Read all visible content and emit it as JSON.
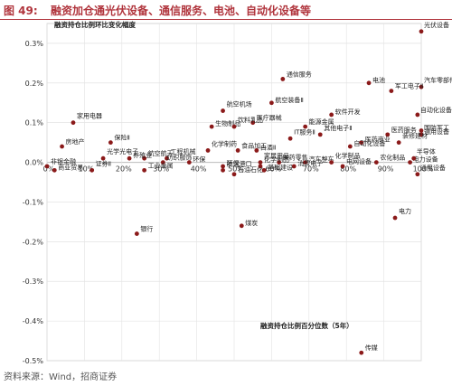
{
  "figure": {
    "label": "图 49:",
    "title": "融资加仓通光伏设备、通信服务、电池、自动化设备等",
    "source": "资料来源：Wind，招商证券"
  },
  "chart_data": {
    "type": "scatter",
    "title": "融资持仓比例环比变化幅度",
    "xlabel": "融资持仓比例百分位数（5年）",
    "ylabel": "",
    "xlim": [
      0,
      1
    ],
    "ylim": [
      -0.005,
      0.0035
    ],
    "x_ticks": [
      "0%",
      "10%",
      "20%",
      "30%",
      "40%",
      "50%",
      "60%",
      "70%",
      "80%",
      "90%",
      "100%"
    ],
    "y_ticks": [
      "0.3%",
      "0.2%",
      "0.1%",
      "0.0%",
      "-0.1%",
      "-0.2%",
      "-0.3%",
      "-0.4%",
      "-0.5%"
    ],
    "grid": true,
    "color": "#8b1a1a",
    "points": [
      {
        "name": "光伏设备",
        "x": 1.0,
        "y": 0.0033
      },
      {
        "name": "通信服务",
        "x": 0.63,
        "y": 0.0021
      },
      {
        "name": "电池",
        "x": 0.86,
        "y": 0.002
      },
      {
        "name": "汽车零部件",
        "x": 1.0,
        "y": 0.0019
      },
      {
        "name": "军工电子Ⅱ",
        "x": 0.92,
        "y": 0.0018
      },
      {
        "name": "航空装备Ⅱ",
        "x": 0.6,
        "y": 0.0015
      },
      {
        "name": "航空机场",
        "x": 0.47,
        "y": 0.0013
      },
      {
        "name": "自动化设备",
        "x": 0.99,
        "y": 0.0012
      },
      {
        "name": "软件开发",
        "x": 0.76,
        "y": 0.0012
      },
      {
        "name": "家用电器",
        "x": 0.07,
        "y": 0.001
      },
      {
        "name": "医疗器械",
        "x": 0.55,
        "y": 0.001
      },
      {
        "name": "生物制品",
        "x": 0.44,
        "y": 0.0009
      },
      {
        "name": "饮料乳品",
        "x": 0.5,
        "y": 0.0009
      },
      {
        "name": "能源金属",
        "x": 0.69,
        "y": 0.0009
      },
      {
        "name": "国防军工",
        "x": 1.0,
        "y": 0.0008
      },
      {
        "name": "其他电子Ⅱ",
        "x": 0.73,
        "y": 0.0007
      },
      {
        "name": "医药服务",
        "x": 0.91,
        "y": 0.0007
      },
      {
        "name": "通用设备",
        "x": 1.0,
        "y": 0.0007
      },
      {
        "name": "IT服务Ⅱ",
        "x": 0.65,
        "y": 0.0006
      },
      {
        "name": "保险Ⅱ",
        "x": 0.17,
        "y": 0.0005
      },
      {
        "name": "医药商业",
        "x": 0.84,
        "y": 0.0005
      },
      {
        "name": "装修建材",
        "x": 0.94,
        "y": 0.0005
      },
      {
        "name": "房地产",
        "x": 0.04,
        "y": 0.0004
      },
      {
        "name": "自动化设备",
        "x": 0.81,
        "y": 0.0004
      },
      {
        "name": "化学制药",
        "x": 0.43,
        "y": 0.0003
      },
      {
        "name": "食品加工",
        "x": 0.51,
        "y": 0.0003
      },
      {
        "name": "白酒Ⅱ",
        "x": 0.56,
        "y": 0.0003
      },
      {
        "name": "光学光电子",
        "x": 0.15,
        "y": 0.0001
      },
      {
        "name": "航空航天",
        "x": 0.26,
        "y": 0.0001
      },
      {
        "name": "养殖业",
        "x": 0.22,
        "y": 0.0001
      },
      {
        "name": "工程机械",
        "x": 0.32,
        "y": 0.0001
      },
      {
        "name": "纺织服饰",
        "x": 0.31,
        "y": 0.0
      },
      {
        "name": "环保",
        "x": 0.38,
        "y": 0.0
      },
      {
        "name": "家居用品",
        "x": 0.57,
        "y": 0.0
      },
      {
        "name": "医药零售",
        "x": 0.62,
        "y": 0.0
      },
      {
        "name": "汽车整车",
        "x": 0.69,
        "y": 0.0
      },
      {
        "name": "化学制品",
        "x": 0.76,
        "y": 0.0
      },
      {
        "name": "农化制品",
        "x": 0.88,
        "y": 0.0
      },
      {
        "name": "电力设备",
        "x": 0.97,
        "y": 0.0
      },
      {
        "name": "半导体",
        "x": 0.98,
        "y": 0.0001
      },
      {
        "name": "非银金融",
        "x": 0.0,
        "y": -0.0001
      },
      {
        "name": "商业贸易",
        "x": 0.02,
        "y": -0.0002
      },
      {
        "name": "证券Ⅱ",
        "x": 0.12,
        "y": -0.0002
      },
      {
        "name": "工业金属",
        "x": 0.26,
        "y": -0.0002
      },
      {
        "name": "环保",
        "x": 0.47,
        "y": -0.0001
      },
      {
        "name": "化学制品",
        "x": 0.57,
        "y": -0.0001
      },
      {
        "name": "电网设备",
        "x": 0.79,
        "y": -0.0001
      },
      {
        "name": "消费电子",
        "x": 0.66,
        "y": -0.0001
      },
      {
        "name": "航运港口",
        "x": 0.47,
        "y": -0.0002
      },
      {
        "name": "石油石化",
        "x": 0.5,
        "y": -0.0003
      },
      {
        "name": "基础建设",
        "x": 0.58,
        "y": -0.0002
      },
      {
        "name": "通用设备",
        "x": 0.99,
        "y": -0.0003
      },
      {
        "name": "银行",
        "x": 0.24,
        "y": -0.0018
      },
      {
        "name": "煤炭",
        "x": 0.52,
        "y": -0.0016
      },
      {
        "name": "电力",
        "x": 0.93,
        "y": -0.0014
      },
      {
        "name": "传媒",
        "x": 0.84,
        "y": -0.0048
      }
    ]
  }
}
